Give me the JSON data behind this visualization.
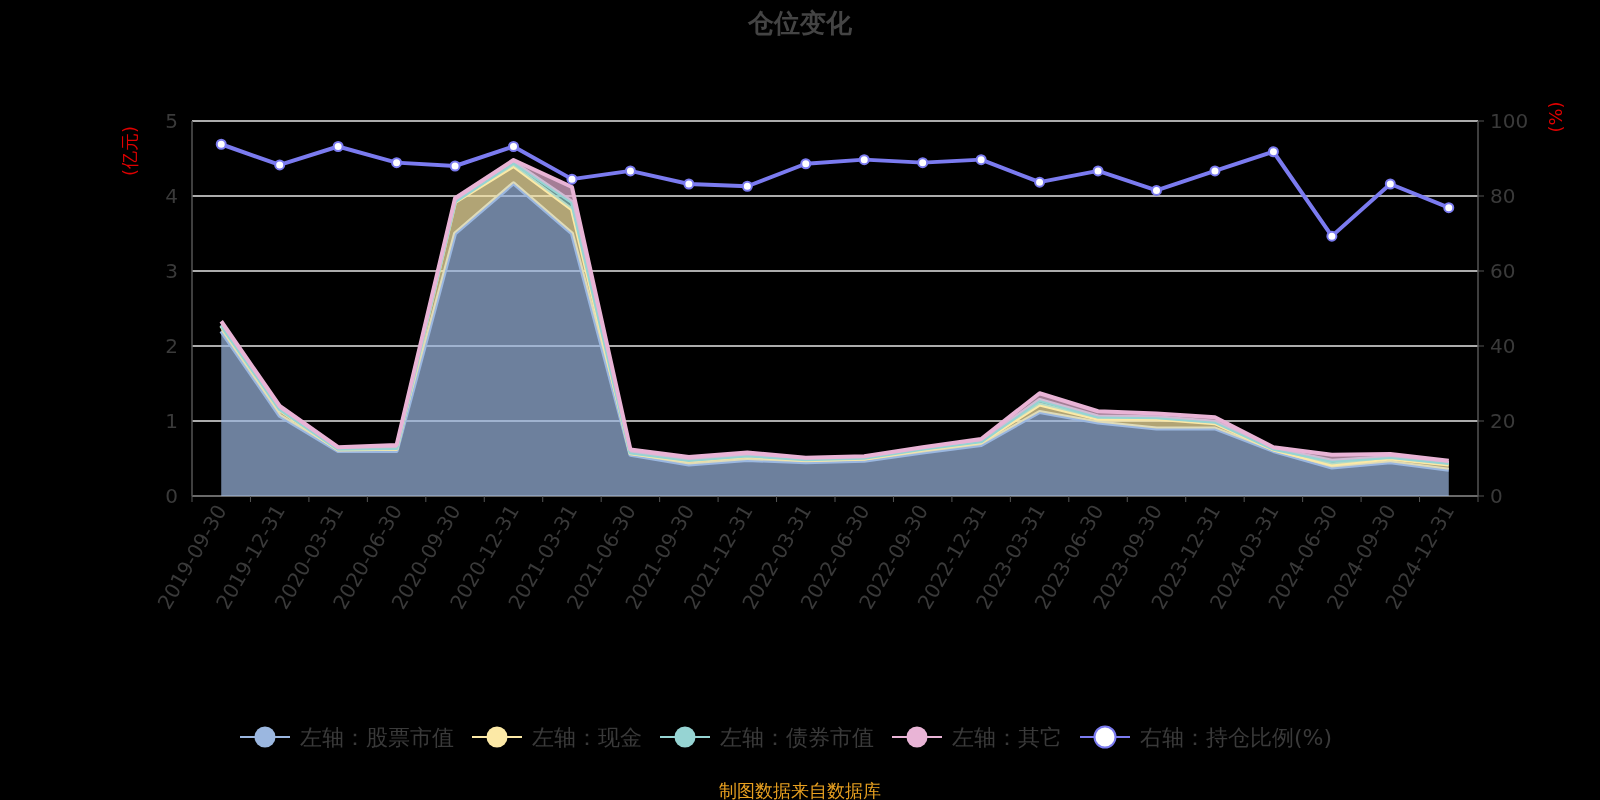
{
  "chart_data": {
    "type": "area",
    "title": "仓位变化",
    "ylabel": "(亿元)",
    "y2label": "(%)",
    "categories": [
      "2019-09-30",
      "2019-12-31",
      "2020-03-31",
      "2020-06-30",
      "2020-09-30",
      "2020-12-31",
      "2021-03-31",
      "2021-06-30",
      "2021-09-30",
      "2021-12-31",
      "2022-03-31",
      "2022-06-30",
      "2022-09-30",
      "2022-12-31",
      "2023-03-31",
      "2023-06-30",
      "2023-09-30",
      "2023-12-31",
      "2024-03-31",
      "2024-06-30",
      "2024-09-30",
      "2024-12-31"
    ],
    "stacked": true,
    "series": [
      {
        "name": "左轴：股票市值",
        "color": "#9bb7e0",
        "values": [
          2.2,
          1.07,
          0.6,
          0.6,
          3.5,
          4.17,
          3.5,
          0.55,
          0.42,
          0.48,
          0.45,
          0.47,
          0.58,
          0.68,
          1.12,
          0.98,
          0.9,
          0.9,
          0.6,
          0.38,
          0.45,
          0.35
        ]
      },
      {
        "name": "左轴：现金",
        "color": "#fce9a6",
        "values": [
          0.07,
          0.08,
          0.02,
          0.03,
          0.42,
          0.23,
          0.32,
          0.02,
          0.05,
          0.05,
          0.03,
          0.03,
          0.04,
          0.04,
          0.1,
          0.05,
          0.13,
          0.07,
          0.02,
          0.04,
          0.05,
          0.07
        ]
      },
      {
        "name": "左轴：债券市值",
        "color": "#96d4d3",
        "values": [
          0.01,
          0.01,
          0.01,
          0.01,
          0.01,
          0.05,
          0.1,
          0.01,
          0.01,
          0.01,
          0.01,
          0.01,
          0.01,
          0.01,
          0.06,
          0.03,
          0.02,
          0.02,
          0.01,
          0.05,
          0.02,
          0.02
        ]
      },
      {
        "name": "左轴：其它",
        "color": "#e9b4d6",
        "values": [
          0.05,
          0.04,
          0.02,
          0.04,
          0.04,
          0.03,
          0.2,
          0.04,
          0.04,
          0.04,
          0.02,
          0.02,
          0.02,
          0.03,
          0.09,
          0.07,
          0.05,
          0.06,
          0.02,
          0.08,
          0.04,
          0.03
        ]
      },
      {
        "name": "右轴：持仓比例(%)",
        "type": "line",
        "axis": "y2",
        "color": "#7b7bf0",
        "marker": "circle",
        "values": [
          93.8,
          88.3,
          93.2,
          88.9,
          88.0,
          93.2,
          84.5,
          86.7,
          83.2,
          82.6,
          88.6,
          89.7,
          88.9,
          89.7,
          83.7,
          86.7,
          81.5,
          86.7,
          91.8,
          69.3,
          83.2,
          76.9
        ]
      }
    ],
    "ylim": [
      0,
      5
    ],
    "yticks": [
      0,
      1,
      2,
      3,
      4,
      5
    ],
    "y2lim": [
      0,
      100
    ],
    "y2ticks": [
      0,
      20,
      40,
      60,
      80,
      100
    ],
    "grid": "y",
    "legend": "bottom",
    "annotations": [
      "制图数据来自数据库"
    ]
  }
}
